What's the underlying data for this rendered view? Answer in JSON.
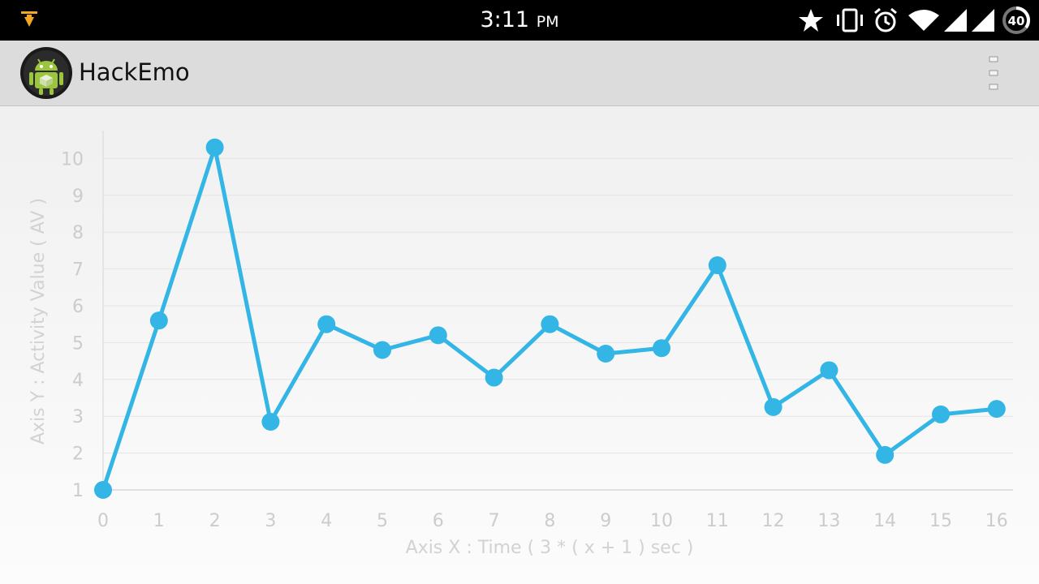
{
  "status_bar": {
    "time": "3:11",
    "ampm": "PM",
    "battery_level": "40",
    "icons": [
      "download-notification-icon",
      "star-icon",
      "vibrate-icon",
      "alarm-icon",
      "wifi-icon",
      "cell-signal-icon",
      "battery-icon"
    ]
  },
  "action_bar": {
    "title": "HackEmo",
    "app_icon": "android-app-icon",
    "menu_icon": "overflow-menu-icon"
  },
  "colors": {
    "series": "#33b5e5",
    "grid": "#dddddd",
    "text_muted": "#cccccc"
  },
  "chart_data": {
    "type": "line",
    "xlabel": "Axis X : Time ( 3 * ( x + 1 ) sec )",
    "ylabel": "Axis Y : Activity Value ( AV )",
    "x": [
      0,
      1,
      2,
      3,
      4,
      5,
      6,
      7,
      8,
      9,
      10,
      11,
      12,
      13,
      14,
      15,
      16
    ],
    "x_ticks": [
      "0",
      "1",
      "2",
      "3",
      "4",
      "5",
      "6",
      "7",
      "8",
      "9",
      "10",
      "11",
      "12",
      "13",
      "14",
      "15",
      "16"
    ],
    "y_ticks": [
      "1",
      "2",
      "3",
      "4",
      "5",
      "6",
      "7",
      "8",
      "9",
      "10"
    ],
    "xlim": [
      0,
      16
    ],
    "ylim": [
      1,
      10
    ],
    "grid": "horizontal",
    "series": [
      {
        "values": [
          1.0,
          5.6,
          10.3,
          2.85,
          5.5,
          4.8,
          5.2,
          4.05,
          5.5,
          4.7,
          4.85,
          7.1,
          3.25,
          4.25,
          1.95,
          3.05,
          3.2
        ]
      }
    ]
  }
}
